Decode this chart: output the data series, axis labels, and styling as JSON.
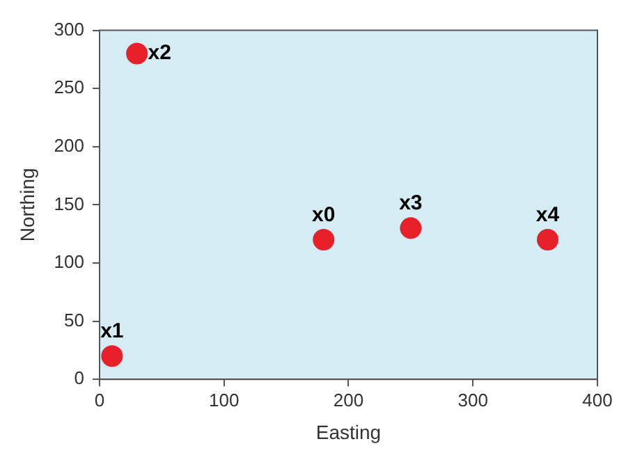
{
  "chart_data": {
    "type": "scatter",
    "xlabel": "Easting",
    "ylabel": "Northing",
    "xlim": [
      0,
      400
    ],
    "xticks": [
      0,
      100,
      200,
      300,
      400
    ],
    "ylim": [
      0,
      300
    ],
    "yticks": [
      0,
      50,
      100,
      150,
      200,
      250,
      300
    ],
    "grid": false,
    "legend": false,
    "marker": "circle",
    "series": [
      {
        "color": "#e8202a",
        "x": [
          10,
          30,
          250,
          360
        ],
        "values": [
          20,
          280,
          130,
          120
        ]
      },
      {
        "color": "#e8202a",
        "x": [
          180
        ],
        "values": [
          120
        ]
      }
    ],
    "annotations": [
      {
        "text": "x1",
        "x": 10,
        "y": 20
      },
      {
        "text": "x2",
        "x": 30,
        "y": 280
      },
      {
        "text": "x0",
        "x": 180,
        "y": 120
      },
      {
        "text": "x3",
        "x": 250,
        "y": 130
      },
      {
        "text": "x4",
        "x": 360,
        "y": 120
      }
    ]
  }
}
